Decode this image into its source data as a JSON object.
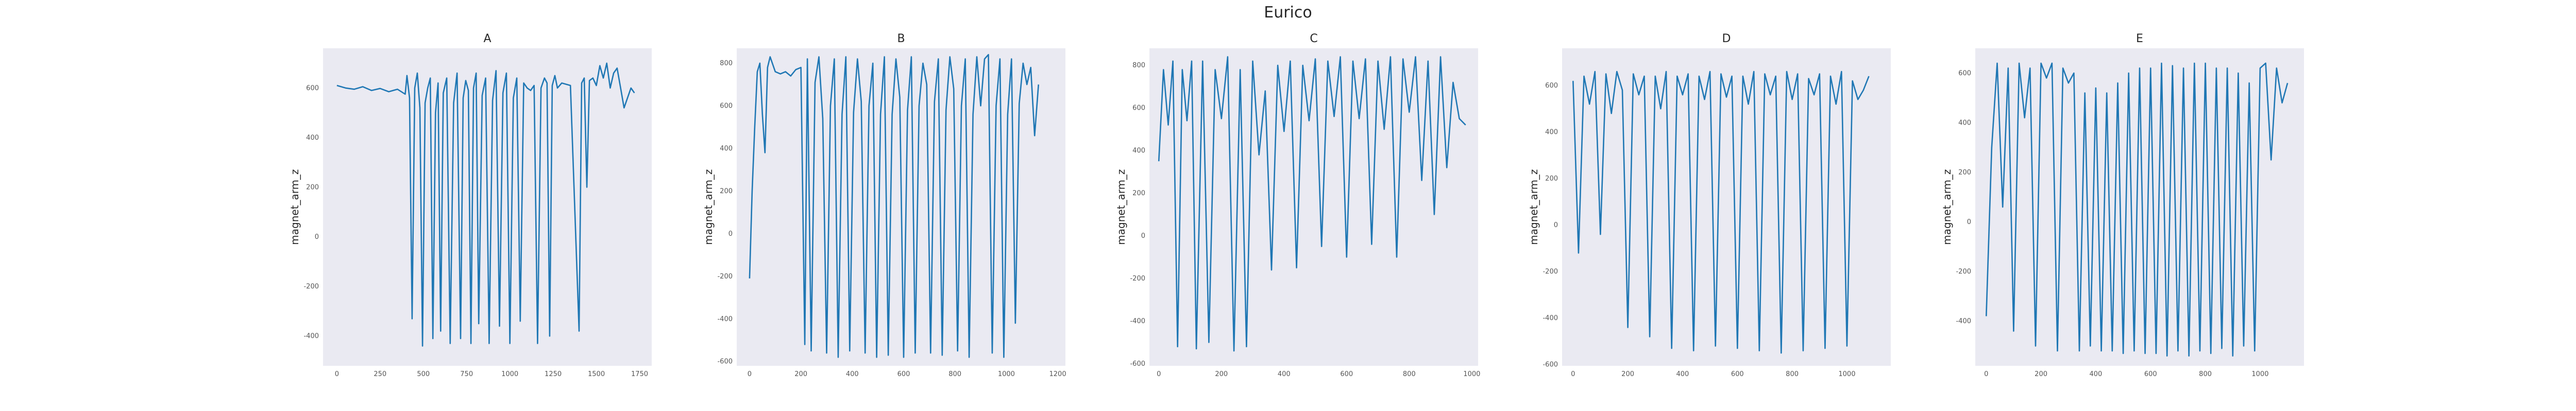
{
  "title": "Eurico",
  "colors": {
    "line": "#1f77b4",
    "plot_background": "#eaeaf2"
  },
  "chart_data": [
    {
      "type": "line",
      "title": "A",
      "xlabel": "",
      "ylabel": "magnet_arm_z",
      "xlim": [
        -80,
        1820
      ],
      "ylim": [
        -520,
        760
      ],
      "xticks": [
        0,
        250,
        500,
        750,
        1000,
        1250,
        1500,
        1750
      ],
      "yticks": [
        -400,
        -200,
        0,
        200,
        400,
        600
      ],
      "grid": false,
      "legend": "none",
      "series": [
        {
          "x": [
            0,
            50,
            100,
            150,
            200,
            250,
            300,
            350,
            395,
            405,
            420,
            435,
            450,
            465,
            480,
            495,
            510,
            525,
            540,
            555,
            570,
            585,
            600,
            615,
            635,
            655,
            675,
            695,
            715,
            730,
            745,
            760,
            775,
            790,
            805,
            820,
            840,
            860,
            880,
            900,
            920,
            940,
            960,
            980,
            1000,
            1020,
            1040,
            1060,
            1080,
            1100,
            1120,
            1140,
            1160,
            1180,
            1200,
            1215,
            1230,
            1245,
            1260,
            1275,
            1300,
            1350,
            1400,
            1415,
            1430,
            1445,
            1460,
            1480,
            1500,
            1520,
            1540,
            1560,
            1580,
            1600,
            1620,
            1640,
            1660,
            1680,
            1700,
            1720
          ],
          "y": [
            610,
            600,
            595,
            605,
            590,
            598,
            585,
            595,
            575,
            650,
            560,
            -330,
            600,
            660,
            520,
            -440,
            540,
            600,
            640,
            -410,
            500,
            620,
            -380,
            580,
            640,
            -430,
            540,
            660,
            -410,
            560,
            630,
            590,
            -430,
            600,
            660,
            -350,
            570,
            640,
            -430,
            550,
            670,
            -360,
            580,
            660,
            -430,
            560,
            640,
            -340,
            620,
            600,
            590,
            610,
            -430,
            600,
            640,
            620,
            -400,
            610,
            650,
            600,
            620,
            610,
            -380,
            620,
            640,
            200,
            630,
            640,
            610,
            690,
            640,
            700,
            600,
            660,
            680,
            600,
            520,
            560,
            600,
            580
          ]
        }
      ]
    },
    {
      "type": "line",
      "title": "B",
      "xlabel": "",
      "ylabel": "magnet_arm_z",
      "xlim": [
        -50,
        1230
      ],
      "ylim": [
        -620,
        870
      ],
      "xticks": [
        0,
        200,
        400,
        600,
        800,
        1000,
        1200
      ],
      "yticks": [
        -600,
        -400,
        -200,
        0,
        200,
        400,
        600,
        800
      ],
      "grid": false,
      "legend": "none",
      "series": [
        {
          "x": [
            0,
            10,
            20,
            30,
            40,
            50,
            60,
            70,
            80,
            100,
            120,
            140,
            160,
            180,
            200,
            215,
            225,
            240,
            255,
            270,
            285,
            300,
            315,
            330,
            345,
            360,
            375,
            390,
            405,
            420,
            435,
            450,
            465,
            480,
            495,
            510,
            525,
            540,
            555,
            570,
            585,
            600,
            615,
            630,
            645,
            660,
            675,
            690,
            705,
            720,
            735,
            750,
            765,
            780,
            795,
            810,
            825,
            840,
            855,
            870,
            885,
            900,
            915,
            930,
            945,
            960,
            975,
            990,
            1005,
            1020,
            1035,
            1050,
            1065,
            1080,
            1095,
            1110,
            1125
          ],
          "y": [
            -210,
            200,
            500,
            760,
            800,
            560,
            380,
            780,
            830,
            760,
            750,
            760,
            740,
            770,
            780,
            -520,
            820,
            -550,
            710,
            830,
            540,
            -560,
            600,
            820,
            -580,
            560,
            830,
            -550,
            570,
            820,
            620,
            -560,
            600,
            800,
            -580,
            560,
            830,
            -570,
            560,
            820,
            640,
            -580,
            580,
            830,
            -560,
            600,
            800,
            700,
            -560,
            620,
            820,
            -570,
            580,
            830,
            680,
            -550,
            600,
            820,
            -580,
            560,
            830,
            600,
            820,
            840,
            -560,
            600,
            820,
            -580,
            560,
            820,
            -420,
            610,
            800,
            700,
            780,
            460,
            700
          ]
        }
      ]
    },
    {
      "type": "line",
      "title": "C",
      "xlabel": "",
      "ylabel": "magnet_arm_z",
      "xlim": [
        -30,
        1020
      ],
      "ylim": [
        -610,
        880
      ],
      "xticks": [
        0,
        200,
        400,
        600,
        800,
        1000
      ],
      "yticks": [
        -600,
        -400,
        -200,
        0,
        200,
        400,
        600,
        800
      ],
      "grid": false,
      "legend": "none",
      "series": [
        {
          "x": [
            0,
            15,
            30,
            45,
            60,
            75,
            90,
            105,
            120,
            140,
            160,
            180,
            200,
            220,
            240,
            260,
            280,
            300,
            320,
            340,
            360,
            380,
            400,
            420,
            440,
            460,
            480,
            500,
            520,
            540,
            560,
            580,
            600,
            620,
            640,
            660,
            680,
            700,
            720,
            740,
            760,
            780,
            800,
            820,
            840,
            860,
            880,
            900,
            920,
            940,
            960,
            980
          ],
          "y": [
            350,
            780,
            520,
            820,
            -520,
            780,
            540,
            820,
            -530,
            820,
            -500,
            780,
            550,
            840,
            -540,
            780,
            -520,
            820,
            380,
            680,
            -160,
            800,
            490,
            820,
            -150,
            800,
            540,
            830,
            -50,
            820,
            560,
            840,
            -100,
            820,
            550,
            830,
            -40,
            820,
            500,
            840,
            -100,
            830,
            580,
            840,
            260,
            820,
            100,
            840,
            320,
            720,
            550,
            520
          ]
        }
      ]
    },
    {
      "type": "line",
      "title": "D",
      "xlabel": "",
      "ylabel": "magnet_arm_z",
      "xlim": [
        -40,
        1160
      ],
      "ylim": [
        -605,
        760
      ],
      "xticks": [
        0,
        200,
        400,
        600,
        800,
        1000
      ],
      "yticks": [
        -600,
        -400,
        -200,
        0,
        200,
        400,
        600
      ],
      "grid": false,
      "legend": "none",
      "series": [
        {
          "x": [
            0,
            20,
            40,
            60,
            80,
            100,
            120,
            140,
            160,
            180,
            200,
            220,
            240,
            260,
            280,
            300,
            320,
            340,
            360,
            380,
            400,
            420,
            440,
            460,
            480,
            500,
            520,
            540,
            560,
            580,
            600,
            620,
            640,
            660,
            680,
            700,
            720,
            740,
            760,
            780,
            800,
            820,
            840,
            860,
            880,
            900,
            920,
            940,
            960,
            980,
            1000,
            1020,
            1040,
            1060,
            1080
          ],
          "y": [
            620,
            -120,
            640,
            520,
            660,
            -40,
            650,
            480,
            660,
            580,
            -440,
            650,
            560,
            640,
            -480,
            640,
            500,
            660,
            -530,
            640,
            560,
            650,
            -540,
            640,
            540,
            660,
            -520,
            650,
            550,
            640,
            -530,
            640,
            520,
            660,
            -540,
            650,
            560,
            640,
            -550,
            660,
            540,
            650,
            -540,
            630,
            560,
            650,
            -530,
            640,
            520,
            660,
            -520,
            620,
            540,
            580,
            640
          ]
        }
      ]
    },
    {
      "type": "line",
      "title": "E",
      "xlabel": "",
      "ylabel": "magnet_arm_z",
      "xlim": [
        -40,
        1160
      ],
      "ylim": [
        -580,
        700
      ],
      "xticks": [
        0,
        200,
        400,
        600,
        800,
        1000
      ],
      "yticks": [
        -400,
        -200,
        0,
        200,
        400,
        600
      ],
      "grid": false,
      "legend": "none",
      "series": [
        {
          "x": [
            0,
            20,
            40,
            60,
            80,
            100,
            120,
            140,
            160,
            180,
            200,
            220,
            240,
            260,
            280,
            300,
            320,
            340,
            360,
            380,
            400,
            420,
            440,
            460,
            480,
            500,
            520,
            540,
            560,
            580,
            600,
            620,
            640,
            660,
            680,
            700,
            720,
            740,
            760,
            780,
            800,
            820,
            840,
            860,
            880,
            900,
            920,
            940,
            960,
            980,
            1000,
            1020,
            1040,
            1060,
            1080,
            1100
          ],
          "y": [
            -380,
            300,
            640,
            60,
            620,
            -440,
            640,
            420,
            620,
            -500,
            640,
            580,
            640,
            -520,
            620,
            560,
            600,
            -520,
            520,
            -500,
            540,
            -520,
            520,
            -520,
            560,
            -530,
            600,
            -520,
            620,
            -530,
            620,
            -530,
            640,
            -540,
            630,
            -520,
            620,
            -540,
            640,
            -520,
            640,
            -530,
            620,
            -510,
            620,
            -540,
            600,
            -500,
            560,
            -520,
            620,
            640,
            250,
            620,
            480,
            560
          ]
        }
      ]
    }
  ]
}
